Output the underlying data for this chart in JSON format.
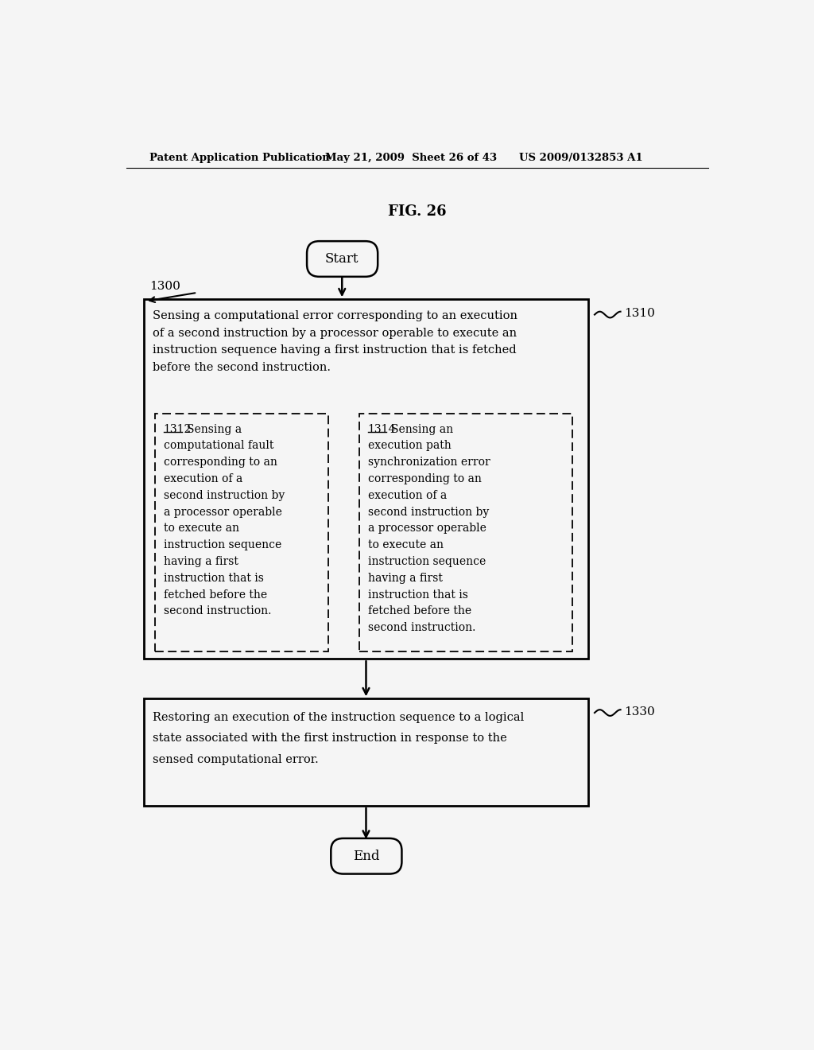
{
  "bg_color": "#f5f5f5",
  "header_line1": "Patent Application Publication",
  "header_date": "May 21, 2009  Sheet 26 of 43",
  "header_patent": "US 2009/0132853 A1",
  "fig_label": "FIG. 26",
  "start_label": "Start",
  "end_label": "End",
  "label_1300": "1300",
  "label_1310": "1310",
  "label_1330": "1330",
  "box1310_top_text_line1": "Sensing a computational error corresponding to an execution",
  "box1310_top_text_line2": "of a second instruction by a processor operable to execute an",
  "box1310_top_text_line3": "instruction sequence having a first instruction that is fetched",
  "box1310_top_text_line4": "before the second instruction.",
  "box1312_label": "1312",
  "box1312_lines": [
    "Sensing a",
    "computational fault",
    "corresponding to an",
    "execution of a",
    "second instruction by",
    "a processor operable",
    "to execute an",
    "instruction sequence",
    "having a first",
    "instruction that is",
    "fetched before the",
    "second instruction."
  ],
  "box1314_label": "1314",
  "box1314_lines": [
    "Sensing an",
    "execution path",
    "synchronization error",
    "corresponding to an",
    "execution of a",
    "second instruction by",
    "a processor operable",
    "to execute an",
    "instruction sequence",
    "having a first",
    "instruction that is",
    "fetched before the",
    "second instruction."
  ],
  "box1330_text_line1": "Restoring an execution of the instruction sequence to a logical",
  "box1330_text_line2": "state associated with the first instruction in response to the",
  "box1330_text_line3": "sensed computational error."
}
